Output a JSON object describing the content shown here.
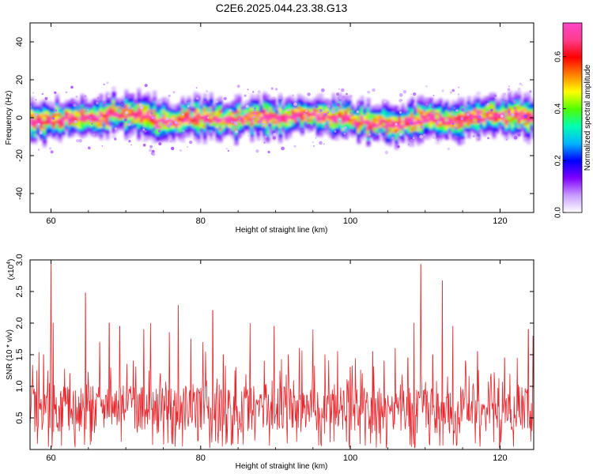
{
  "figure": {
    "title": "C2E6.2025.044.23.38.G13"
  },
  "chart_data": [
    {
      "type": "heatmap",
      "title": "C2E6.2025.044.23.38.G13",
      "xlabel": "Height of straight line (km)",
      "ylabel": "Frequency (Hz)",
      "xlim": [
        57.2,
        124.5
      ],
      "ylim": [
        -50,
        50
      ],
      "x_ticks": [
        60,
        80,
        100,
        120
      ],
      "y_ticks": [
        -40,
        -20,
        0,
        20,
        40
      ],
      "grid": false,
      "colorbar": {
        "label": "Normalized spectral amplitude",
        "range": [
          0.0,
          0.73
        ],
        "ticks": [
          0.0,
          0.2,
          0.4,
          0.6
        ],
        "tick_labels": [
          "0.0",
          "0.2",
          "0.4",
          "0.6"
        ],
        "colors": [
          "#ffffff",
          "#c89bff",
          "#8000ff",
          "#0000ff",
          "#00b4ff",
          "#00ffb4",
          "#50ff00",
          "#ffff00",
          "#ff8000",
          "#ff0000",
          "#ff3c8c",
          "#ff46c8"
        ]
      },
      "band_center_hz": [
        [
          58,
          -2
        ],
        [
          62,
          -1
        ],
        [
          66,
          0
        ],
        [
          68,
          2
        ],
        [
          70,
          0
        ],
        [
          72,
          1
        ],
        [
          74,
          -2
        ],
        [
          76,
          -4
        ],
        [
          78,
          -1
        ],
        [
          80,
          0
        ],
        [
          82,
          -1
        ],
        [
          84,
          -2
        ],
        [
          86,
          0
        ],
        [
          88,
          0
        ],
        [
          90,
          -1
        ],
        [
          92,
          1
        ],
        [
          94,
          1
        ],
        [
          96,
          0
        ],
        [
          98,
          0
        ],
        [
          100,
          -1
        ],
        [
          102,
          -3
        ],
        [
          104,
          -2
        ],
        [
          106,
          -4
        ],
        [
          108,
          -3
        ],
        [
          110,
          -1
        ],
        [
          112,
          -1
        ],
        [
          114,
          -2
        ],
        [
          116,
          1
        ],
        [
          118,
          1
        ],
        [
          120,
          0
        ],
        [
          122,
          1
        ],
        [
          124,
          -1
        ]
      ]
    },
    {
      "type": "line",
      "xlabel": "Height of straight line (km)",
      "ylabel": "SNR (10 * v/v)",
      "y_multiplier": "(x10",
      "y_multiplier_exp": "4",
      "y_multiplier_close": ")",
      "xlim": [
        57.2,
        124.5
      ],
      "ylim": [
        0,
        3.0
      ],
      "x_ticks": [
        60,
        80,
        100,
        120
      ],
      "y_ticks": [
        0.5,
        1.0,
        1.5,
        2.0,
        2.5,
        3.0
      ],
      "y_tick_labels": [
        "0.5",
        "1.0",
        "1.5",
        "2.0",
        "2.5",
        "3.0"
      ],
      "grid": false,
      "color": "#e8262c",
      "peaks": [
        [
          57.5,
          1.0
        ],
        [
          59.0,
          1.5
        ],
        [
          60.0,
          3.0
        ],
        [
          60.3,
          2.0
        ],
        [
          62.5,
          1.2
        ],
        [
          64.6,
          2.48
        ],
        [
          66.5,
          1.7
        ],
        [
          67.8,
          2.0
        ],
        [
          69.2,
          1.95
        ],
        [
          71.0,
          1.4
        ],
        [
          72.4,
          1.9
        ],
        [
          73.3,
          2.0
        ],
        [
          74.6,
          1.2
        ],
        [
          75.8,
          1.85
        ],
        [
          77.0,
          2.28
        ],
        [
          78.7,
          1.75
        ],
        [
          80.3,
          1.7
        ],
        [
          81.6,
          2.2
        ],
        [
          83.0,
          1.5
        ],
        [
          84.7,
          1.3
        ],
        [
          86.6,
          2.0
        ],
        [
          88.5,
          1.4
        ],
        [
          89.8,
          1.95
        ],
        [
          91.7,
          1.5
        ],
        [
          93.2,
          1.6
        ],
        [
          95.0,
          1.9
        ],
        [
          96.6,
          1.5
        ],
        [
          98.3,
          1.55
        ],
        [
          100.0,
          1.3
        ],
        [
          101.6,
          1.2
        ],
        [
          103.0,
          1.55
        ],
        [
          104.5,
          1.4
        ],
        [
          106.0,
          1.6
        ],
        [
          107.7,
          1.45
        ],
        [
          108.5,
          2.0
        ],
        [
          109.4,
          2.93
        ],
        [
          111.0,
          1.5
        ],
        [
          112.3,
          2.67
        ],
        [
          113.7,
          1.95
        ],
        [
          115.4,
          1.4
        ],
        [
          117.0,
          1.55
        ],
        [
          118.8,
          1.2
        ],
        [
          120.6,
          1.45
        ],
        [
          122.3,
          1.45
        ],
        [
          123.8,
          1.9
        ],
        [
          124.4,
          1.8
        ]
      ]
    }
  ]
}
